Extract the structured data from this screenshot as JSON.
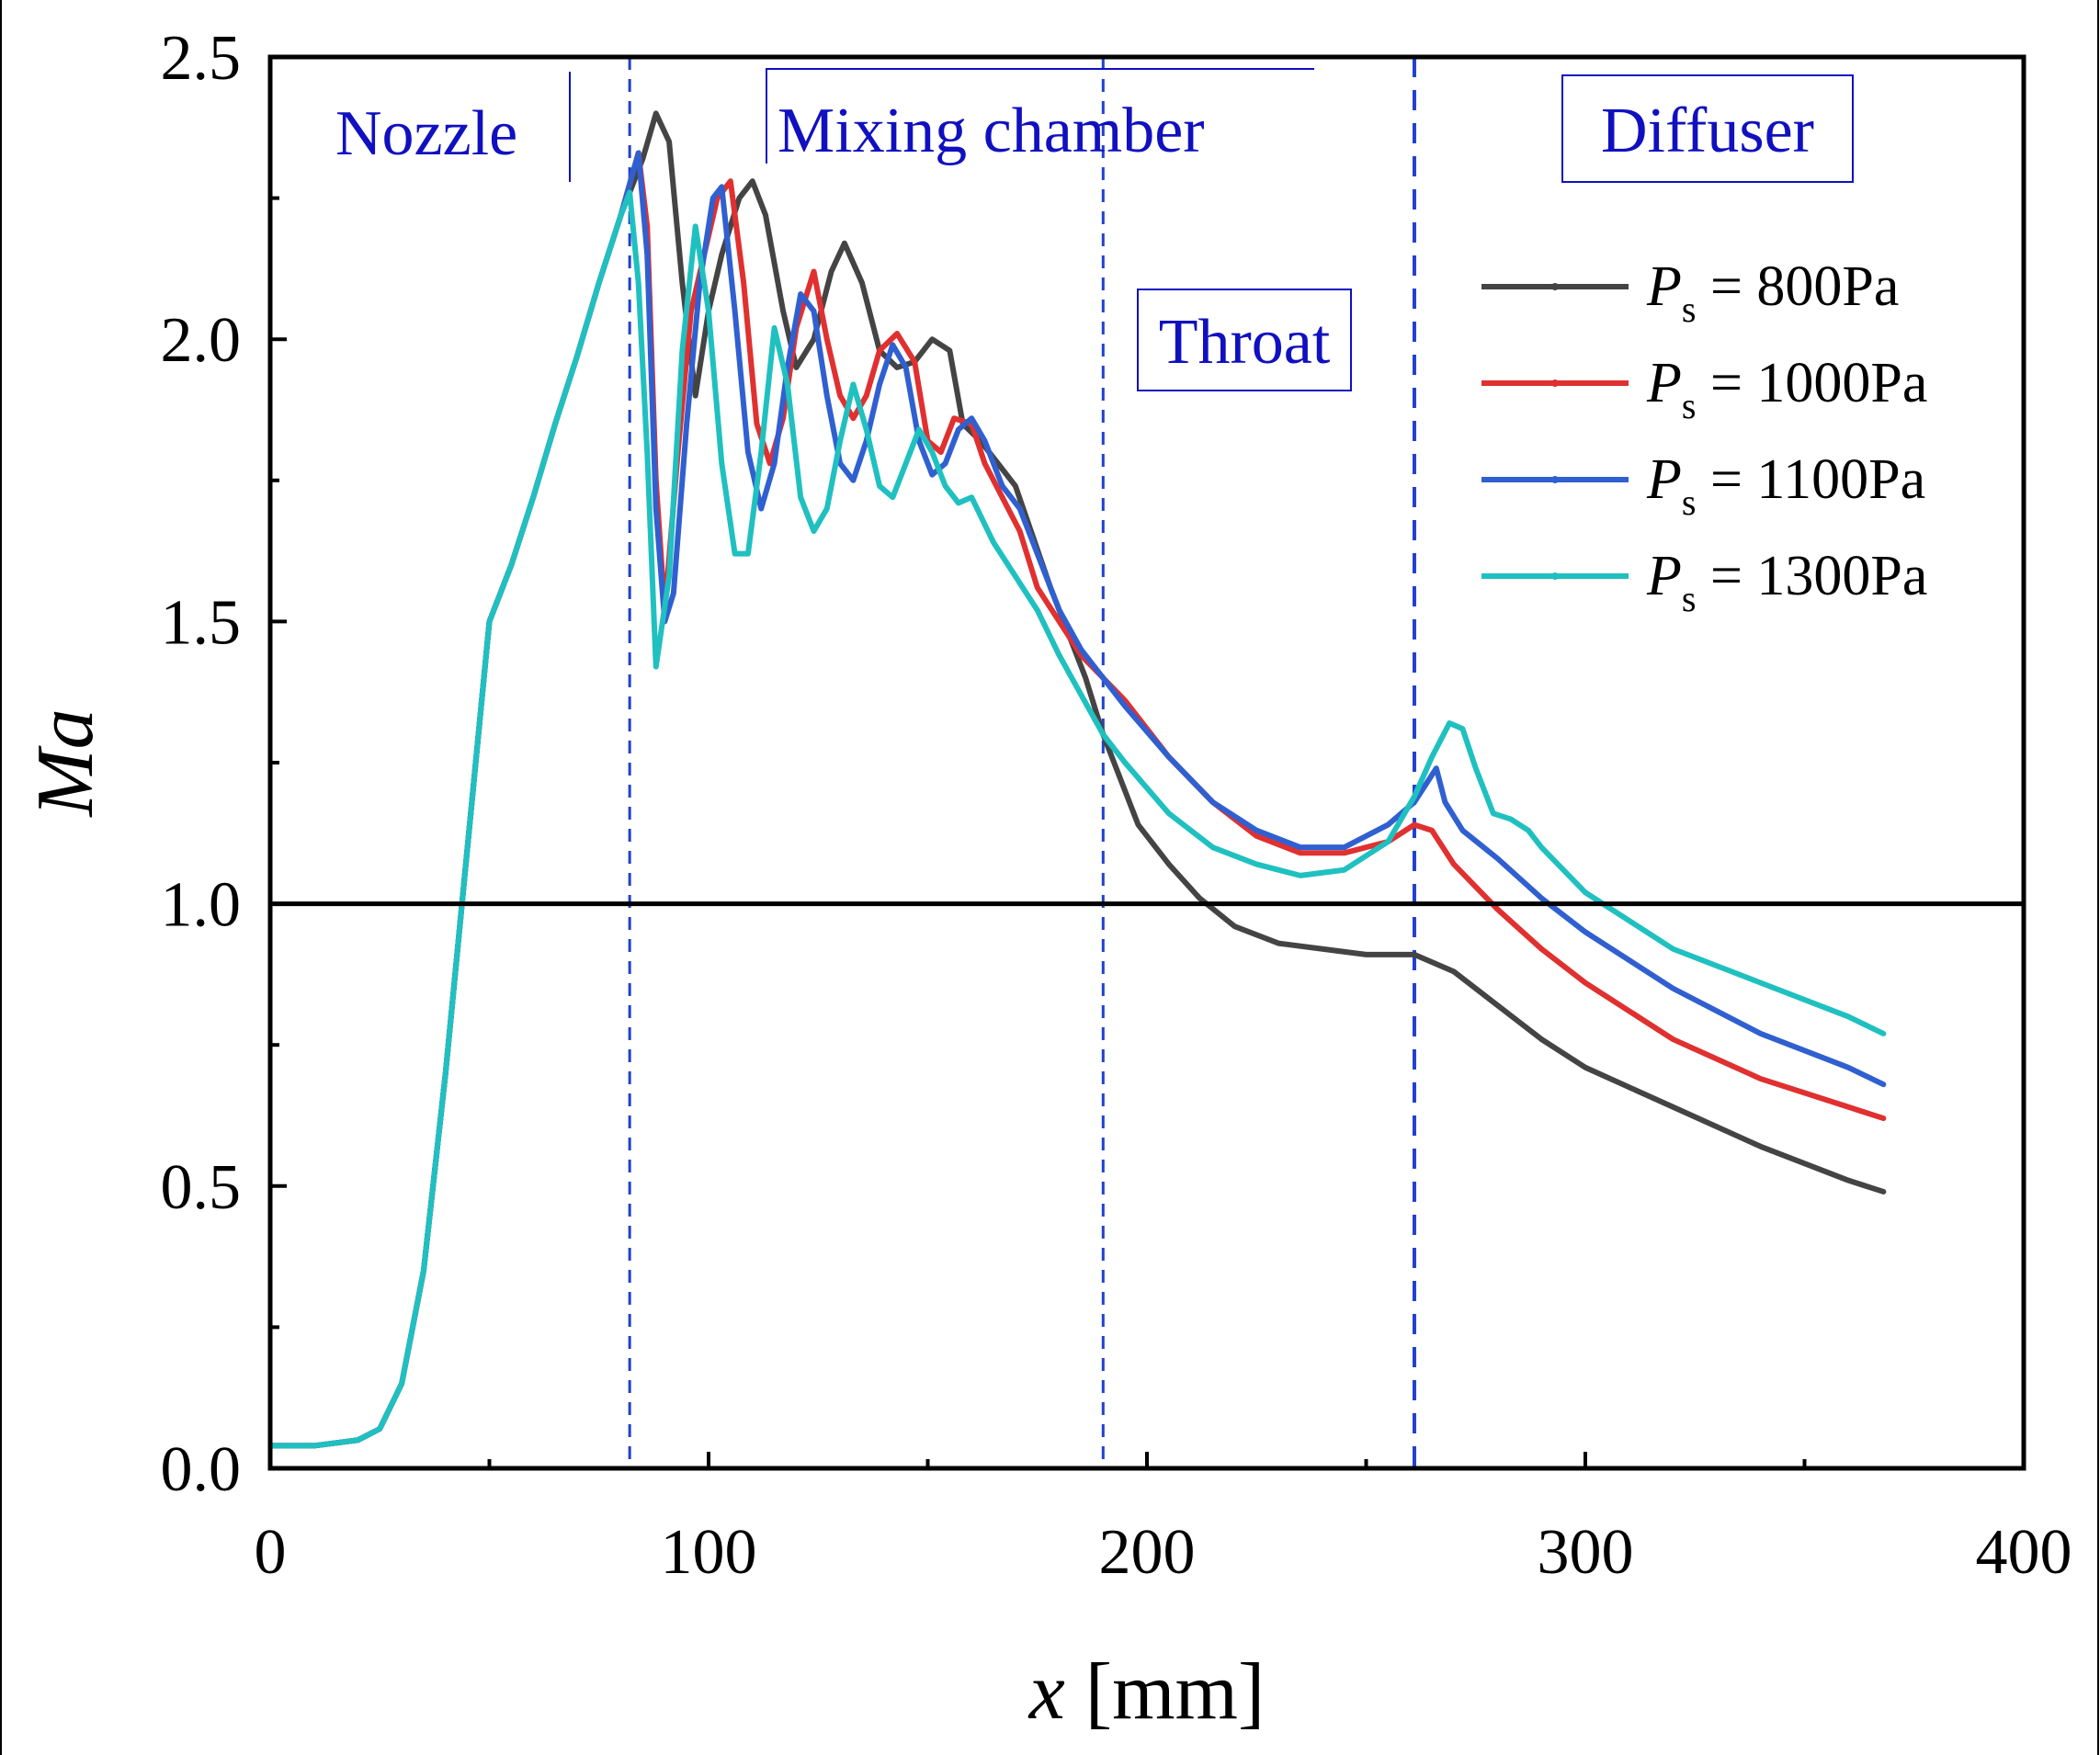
{
  "chart_data": {
    "type": "line",
    "title": "",
    "xlabel": "x [mm]",
    "ylabel": "Ma",
    "xlim": [
      0,
      400
    ],
    "ylim": [
      0,
      2.5
    ],
    "x_ticks": [
      0,
      100,
      200,
      300,
      400
    ],
    "y_ticks": [
      0.0,
      0.5,
      1.0,
      1.5,
      2.0,
      2.5
    ],
    "x_tick_labels": [
      "0",
      "100",
      "200",
      "300",
      "400"
    ],
    "y_tick_labels": [
      "0.0",
      "0.5",
      "1.0",
      "1.5",
      "2.0",
      "2.5"
    ],
    "grid": false,
    "legend_position": "top-right",
    "reference_line": {
      "y": 1.0,
      "color": "#000000"
    },
    "region_dividers": [
      82,
      190,
      261
    ],
    "regions": [
      "Nozzle",
      "Mixing chamber",
      "Throat",
      "Diffuser"
    ],
    "legend_prefix": "P",
    "legend_subscript": "s",
    "series": [
      {
        "name": "= 800Pa",
        "color": "#444444",
        "x": [
          0,
          10,
          20,
          25,
          30,
          35,
          40,
          45,
          50,
          55,
          60,
          65,
          70,
          75,
          80,
          85,
          88,
          91,
          94,
          97,
          100,
          103,
          107,
          110,
          113,
          117,
          120,
          124,
          128,
          131,
          135,
          139,
          143,
          147,
          151,
          155,
          158,
          162,
          166,
          170,
          174,
          178,
          182,
          186,
          190,
          194,
          198,
          205,
          212,
          220,
          230,
          240,
          250,
          261,
          270,
          280,
          290,
          300,
          320,
          340,
          360,
          368
        ],
        "y": [
          0.04,
          0.04,
          0.05,
          0.07,
          0.15,
          0.35,
          0.7,
          1.1,
          1.5,
          1.6,
          1.72,
          1.85,
          1.97,
          2.1,
          2.22,
          2.32,
          2.4,
          2.35,
          2.1,
          1.9,
          2.05,
          2.15,
          2.25,
          2.28,
          2.22,
          2.05,
          1.95,
          2.0,
          2.12,
          2.17,
          2.1,
          1.98,
          1.95,
          1.96,
          2.0,
          1.98,
          1.85,
          1.82,
          1.78,
          1.74,
          1.65,
          1.56,
          1.48,
          1.4,
          1.3,
          1.22,
          1.14,
          1.07,
          1.01,
          0.96,
          0.93,
          0.92,
          0.91,
          0.91,
          0.88,
          0.82,
          0.76,
          0.71,
          0.64,
          0.57,
          0.51,
          0.49
        ]
      },
      {
        "name": "= 1000Pa",
        "color": "#e03030",
        "x": [
          0,
          10,
          20,
          25,
          30,
          35,
          40,
          45,
          50,
          55,
          60,
          65,
          70,
          75,
          80,
          84,
          86,
          88,
          90,
          93,
          96,
          99,
          102,
          105,
          108,
          111,
          114,
          117,
          120,
          124,
          127,
          130,
          133,
          136,
          139,
          143,
          147,
          150,
          153,
          156,
          160,
          163,
          167,
          171,
          175,
          180,
          185,
          190,
          195,
          205,
          215,
          225,
          235,
          245,
          255,
          261,
          265,
          270,
          280,
          290,
          300,
          320,
          340,
          360,
          368
        ],
        "y": [
          0.04,
          0.04,
          0.05,
          0.07,
          0.15,
          0.35,
          0.7,
          1.1,
          1.5,
          1.6,
          1.72,
          1.85,
          1.97,
          2.1,
          2.22,
          2.33,
          2.2,
          1.75,
          1.52,
          1.8,
          2.05,
          2.15,
          2.25,
          2.28,
          2.1,
          1.85,
          1.78,
          1.86,
          2.02,
          2.12,
          2.0,
          1.9,
          1.86,
          1.9,
          1.98,
          2.01,
          1.96,
          1.82,
          1.8,
          1.86,
          1.85,
          1.78,
          1.72,
          1.66,
          1.56,
          1.5,
          1.44,
          1.4,
          1.36,
          1.26,
          1.18,
          1.12,
          1.09,
          1.09,
          1.11,
          1.14,
          1.13,
          1.07,
          0.99,
          0.92,
          0.86,
          0.76,
          0.69,
          0.64,
          0.62
        ]
      },
      {
        "name": "= 1100Pa",
        "color": "#3060d0",
        "x": [
          0,
          10,
          20,
          25,
          30,
          35,
          40,
          45,
          50,
          55,
          60,
          65,
          70,
          75,
          80,
          84,
          86,
          88,
          90,
          92,
          95,
          98,
          101,
          103,
          106,
          109,
          112,
          115,
          118,
          121,
          124,
          127,
          130,
          133,
          136,
          139,
          142,
          145,
          148,
          151,
          154,
          157,
          160,
          163,
          167,
          171,
          175,
          180,
          185,
          190,
          195,
          205,
          215,
          225,
          235,
          245,
          255,
          261,
          266,
          268,
          272,
          280,
          290,
          300,
          320,
          340,
          360,
          368
        ],
        "y": [
          0.04,
          0.04,
          0.05,
          0.07,
          0.15,
          0.35,
          0.7,
          1.1,
          1.5,
          1.6,
          1.72,
          1.85,
          1.97,
          2.1,
          2.22,
          2.33,
          2.15,
          1.7,
          1.5,
          1.55,
          1.85,
          2.1,
          2.25,
          2.27,
          2.05,
          1.8,
          1.7,
          1.78,
          1.95,
          2.08,
          2.05,
          1.9,
          1.78,
          1.75,
          1.82,
          1.92,
          1.99,
          1.95,
          1.82,
          1.76,
          1.78,
          1.84,
          1.86,
          1.82,
          1.74,
          1.7,
          1.62,
          1.52,
          1.45,
          1.4,
          1.35,
          1.26,
          1.18,
          1.13,
          1.1,
          1.1,
          1.14,
          1.18,
          1.24,
          1.18,
          1.13,
          1.08,
          1.01,
          0.95,
          0.85,
          0.77,
          0.71,
          0.68
        ]
      },
      {
        "name": "= 1300Pa",
        "color": "#20c0c0",
        "x": [
          0,
          10,
          20,
          25,
          30,
          35,
          40,
          45,
          50,
          55,
          60,
          65,
          70,
          75,
          80,
          82,
          84,
          86,
          88,
          91,
          94,
          97,
          100,
          103,
          106,
          109,
          112,
          115,
          118,
          121,
          124,
          127,
          130,
          133,
          136,
          139,
          142,
          145,
          148,
          151,
          154,
          157,
          160,
          165,
          170,
          175,
          180,
          185,
          190,
          195,
          205,
          215,
          225,
          235,
          245,
          255,
          261,
          265,
          269,
          272,
          275,
          279,
          283,
          287,
          290,
          300,
          320,
          340,
          360,
          368
        ],
        "y": [
          0.04,
          0.04,
          0.05,
          0.07,
          0.15,
          0.35,
          0.7,
          1.1,
          1.5,
          1.6,
          1.72,
          1.85,
          1.97,
          2.1,
          2.22,
          2.26,
          2.1,
          1.8,
          1.42,
          1.58,
          1.98,
          2.2,
          2.05,
          1.78,
          1.62,
          1.62,
          1.8,
          2.02,
          1.92,
          1.72,
          1.66,
          1.7,
          1.82,
          1.92,
          1.84,
          1.74,
          1.72,
          1.78,
          1.84,
          1.8,
          1.74,
          1.71,
          1.72,
          1.64,
          1.58,
          1.52,
          1.44,
          1.37,
          1.3,
          1.25,
          1.16,
          1.1,
          1.07,
          1.05,
          1.06,
          1.11,
          1.19,
          1.26,
          1.32,
          1.31,
          1.24,
          1.16,
          1.15,
          1.13,
          1.1,
          1.02,
          0.92,
          0.86,
          0.8,
          0.77
        ]
      }
    ]
  }
}
